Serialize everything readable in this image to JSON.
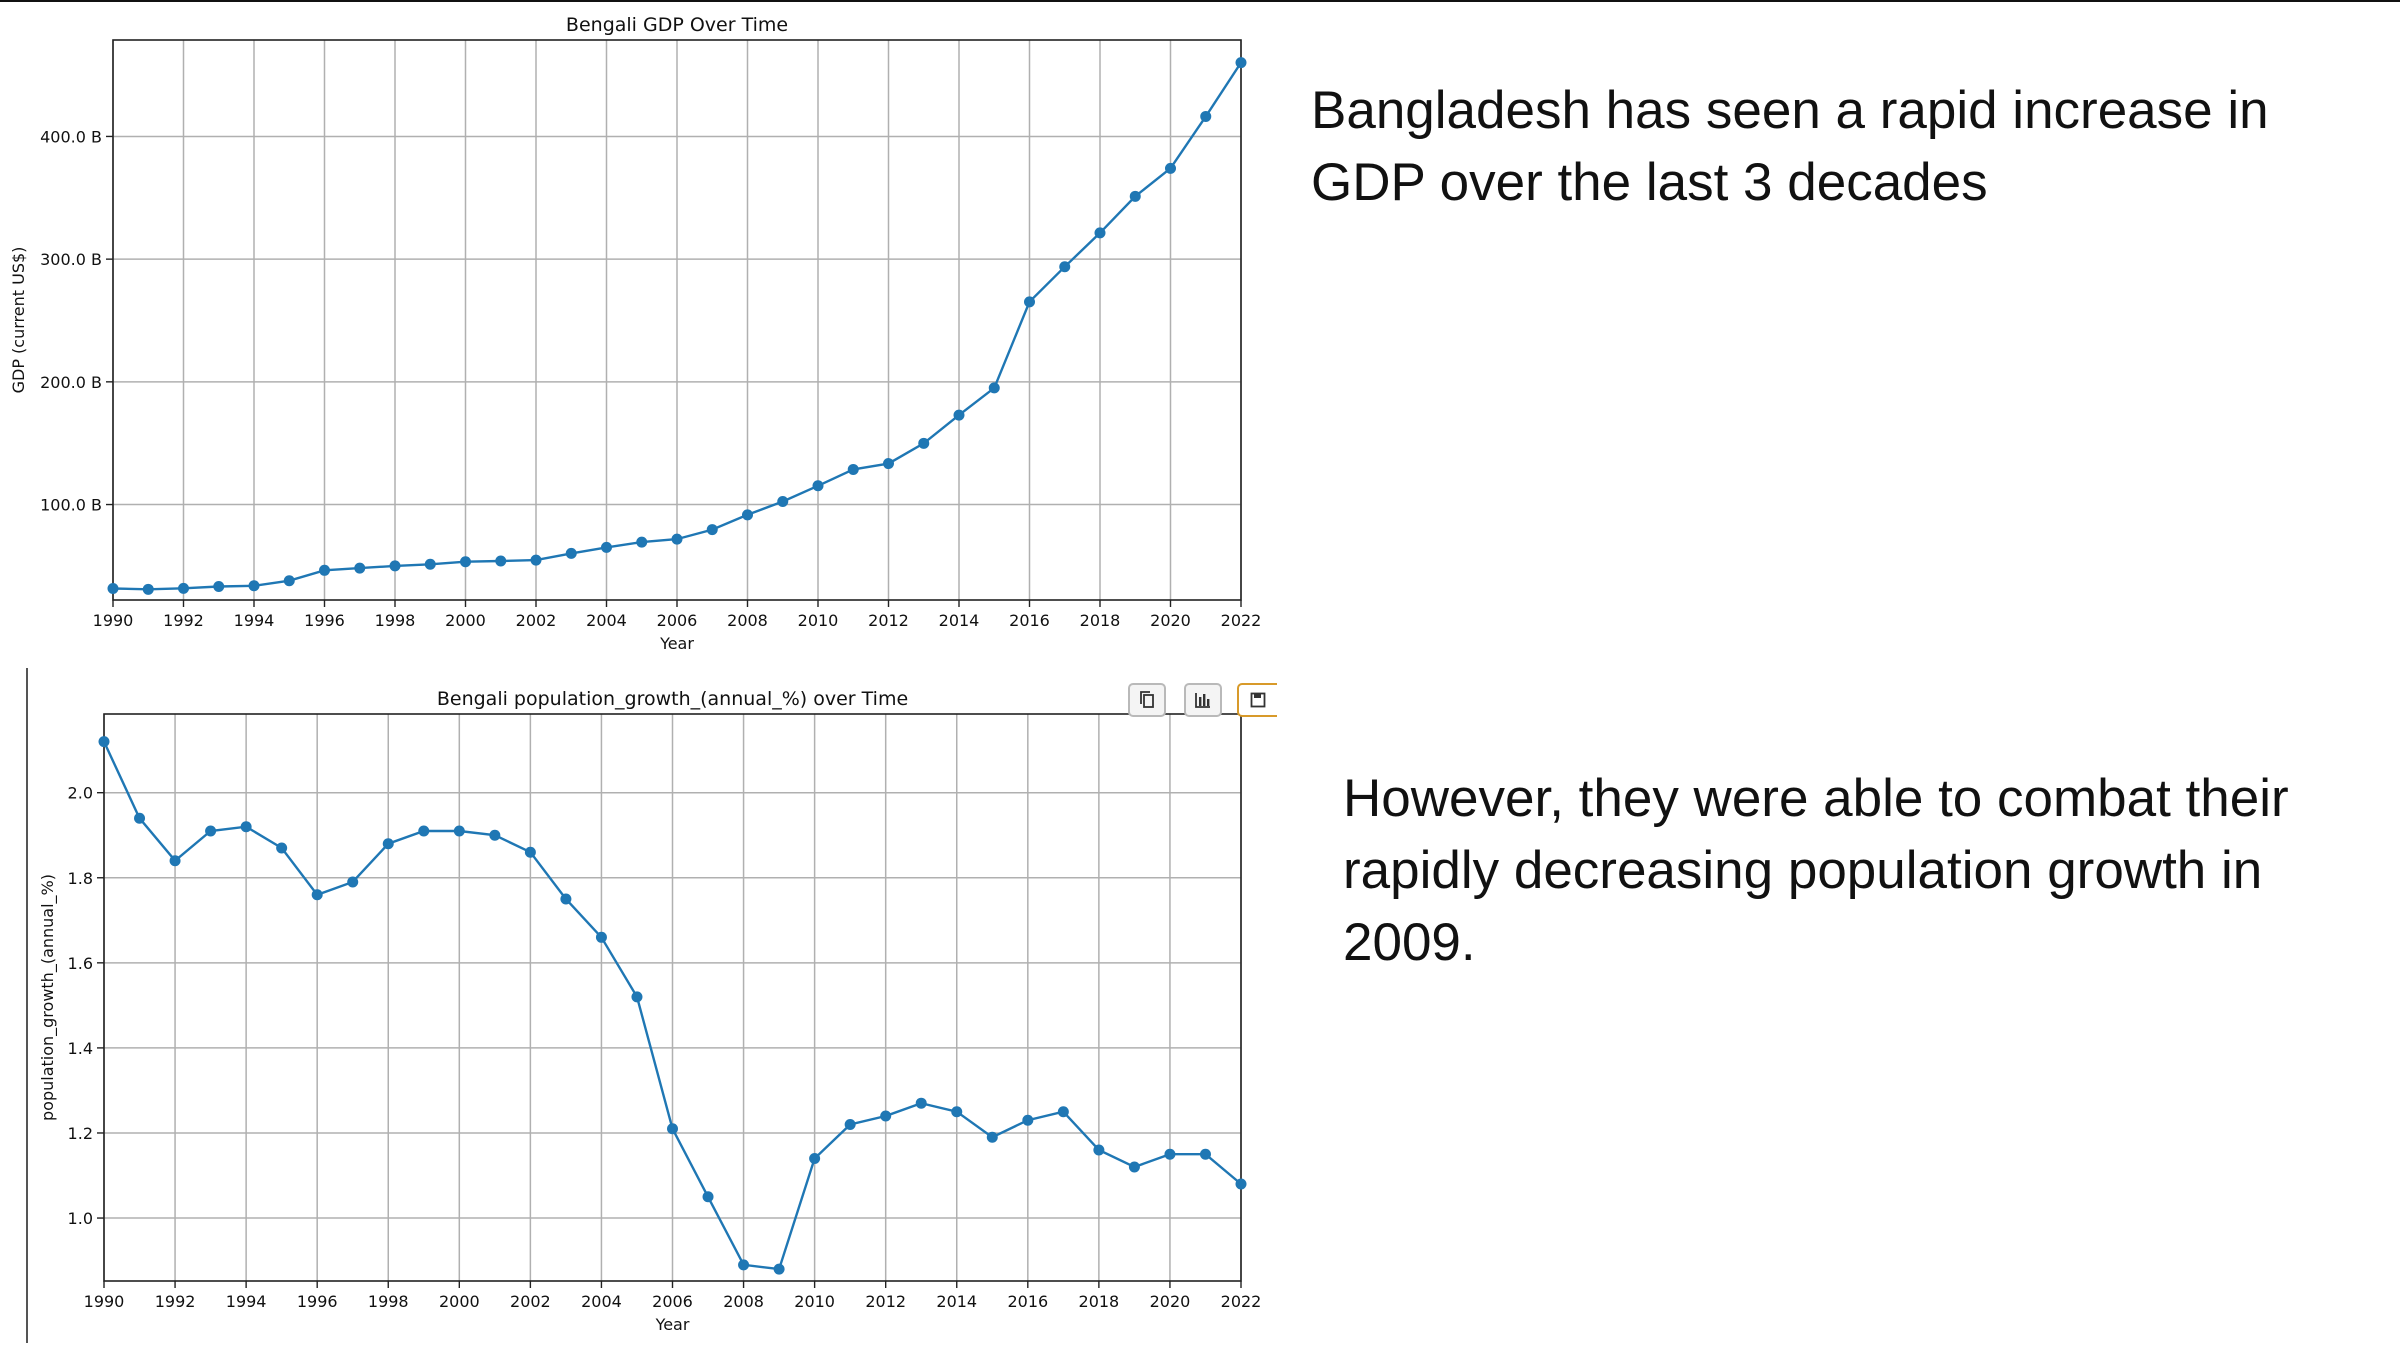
{
  "captions": {
    "gdp": "Bangladesh has seen a rapid increase in GDP over the last 3 decades",
    "population": "However, they were able to combat their rapidly decreasing population growth in 2009."
  },
  "toolbar": {
    "copy_icon": "copy-icon",
    "chart_icon": "bar-chart-icon",
    "save_icon": "save-icon"
  },
  "colors": {
    "series": "#1f77b4",
    "grid": "#b0b0b0",
    "axis": "#222222"
  },
  "chart_data": [
    {
      "type": "line",
      "title": "Bengali GDP Over Time",
      "xlabel": "Year",
      "ylabel": "GDP (current US$)",
      "x": [
        1990,
        1991,
        1992,
        1993,
        1994,
        1995,
        1996,
        1997,
        1998,
        1999,
        2000,
        2001,
        2002,
        2003,
        2004,
        2005,
        2006,
        2007,
        2008,
        2009,
        2010,
        2011,
        2012,
        2013,
        2014,
        2015,
        2016,
        2017,
        2018,
        2019,
        2020,
        2021,
        2022
      ],
      "values": [
        31.6,
        30.9,
        31.7,
        33.2,
        33.8,
        37.9,
        46.4,
        48.2,
        50.0,
        51.3,
        53.4,
        54.0,
        54.7,
        60.2,
        65.1,
        69.4,
        71.8,
        79.6,
        91.6,
        102.5,
        115.3,
        128.6,
        133.4,
        149.9,
        172.9,
        195.1,
        265.2,
        293.8,
        321.4,
        351.2,
        374.0,
        416.3,
        460.2
      ],
      "xlim": [
        1990,
        2022
      ],
      "ylim": [
        22.2,
        478.6
      ],
      "xticks": [
        1990,
        1992,
        1994,
        1996,
        1998,
        2000,
        2002,
        2004,
        2006,
        2008,
        2010,
        2012,
        2014,
        2016,
        2018,
        2020,
        2022
      ],
      "yticks": [
        100,
        200,
        300,
        400
      ],
      "ytick_labels": [
        "100.0 B",
        "200.0 B",
        "300.0 B",
        "400.0 B"
      ],
      "grid": true,
      "marker": "circle"
    },
    {
      "type": "line",
      "title": "Bengali population_growth_(annual_%) over Time",
      "xlabel": "Year",
      "ylabel": "population_growth_(annual_%)",
      "x": [
        1990,
        1991,
        1992,
        1993,
        1994,
        1995,
        1996,
        1997,
        1998,
        1999,
        2000,
        2001,
        2002,
        2003,
        2004,
        2005,
        2006,
        2007,
        2008,
        2009,
        2010,
        2011,
        2012,
        2013,
        2014,
        2015,
        2016,
        2017,
        2018,
        2019,
        2020,
        2021,
        2022
      ],
      "values": [
        2.12,
        1.94,
        1.84,
        1.91,
        1.92,
        1.87,
        1.76,
        1.79,
        1.88,
        1.91,
        1.91,
        1.9,
        1.86,
        1.75,
        1.66,
        1.52,
        1.21,
        1.05,
        0.89,
        0.88,
        1.14,
        1.22,
        1.24,
        1.27,
        1.25,
        1.19,
        1.23,
        1.25,
        1.16,
        1.12,
        1.15,
        1.15,
        1.08
      ],
      "xlim": [
        1990,
        2022
      ],
      "ylim": [
        0.852,
        2.185
      ],
      "xticks": [
        1990,
        1992,
        1994,
        1996,
        1998,
        2000,
        2002,
        2004,
        2006,
        2008,
        2010,
        2012,
        2014,
        2016,
        2018,
        2020,
        2022
      ],
      "yticks": [
        1.0,
        1.2,
        1.4,
        1.6,
        1.8,
        2.0
      ],
      "ytick_labels": [
        "1.0",
        "1.2",
        "1.4",
        "1.6",
        "1.8",
        "2.0"
      ],
      "grid": true,
      "marker": "circle"
    }
  ]
}
